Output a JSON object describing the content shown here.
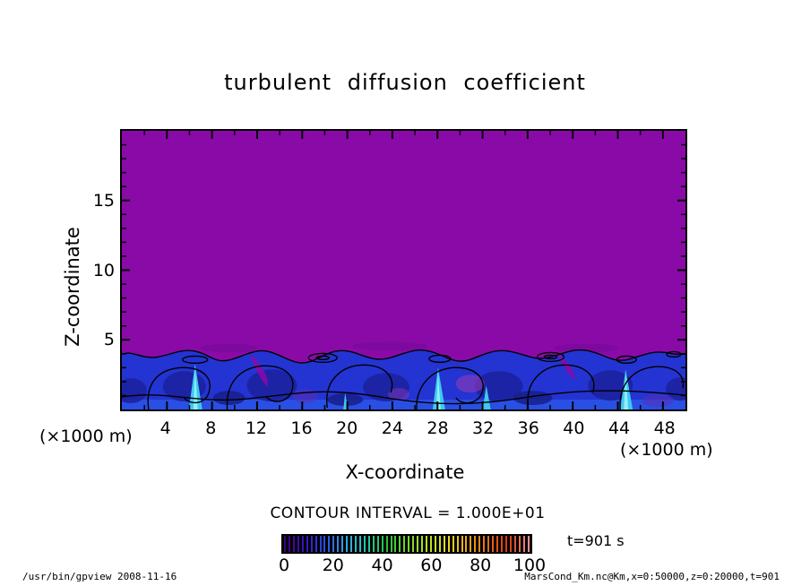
{
  "title": "turbulent diffusion coefficient",
  "axes": {
    "x": {
      "label": "X-coordinate",
      "unit": "(×1000 m)",
      "range": [
        0,
        50
      ],
      "major_ticks": [
        4,
        8,
        12,
        16,
        20,
        24,
        28,
        32,
        36,
        40,
        44,
        48
      ],
      "minor_step": 2
    },
    "y": {
      "label": "Z-coordinate",
      "unit": "(×1000 m)",
      "range": [
        0,
        20
      ],
      "major_ticks": [
        5,
        10,
        15
      ],
      "minor_step": 1
    }
  },
  "annotations": {
    "contour_interval": "CONTOUR INTERVAL = 1.000E+01",
    "time_label": "t=901 s"
  },
  "colorbar": {
    "tick_labels": [
      0,
      20,
      40,
      60,
      80,
      100
    ],
    "range": [
      0,
      100
    ],
    "stripe_count": 56,
    "palette": [
      "#46007d",
      "#3a14c3",
      "#2a4fe0",
      "#2fa9e8",
      "#1fc9ae",
      "#27c43a",
      "#71d723",
      "#b7e01e",
      "#e8da1c",
      "#eda41d",
      "#e56f15",
      "#d93a11",
      "#ef9090"
    ]
  },
  "footer": {
    "left": "/usr/bin/gpview  2008-11-16",
    "right": "MarsCond_Km.nc@Km,x=0:50000,z=0:20000,t=901"
  },
  "colors": {
    "purple-field": "#8a0aa8",
    "band-blue": "#2334d2",
    "band-navy": "#1c22a0",
    "band-deep": "#171d86",
    "strip-blue": "#2c55e8",
    "violet-patch": "#5c2bb4",
    "magenta-patch": "#a33ab4",
    "cyan-plume": "#3fc8ef",
    "cyan-bright": "#8df0fb",
    "contour-line": "#000000"
  },
  "chart_data": {
    "type": "heatmap",
    "title": "turbulent diffusion coefficient",
    "xlabel": "X-coordinate (×1000 m)",
    "ylabel": "Z-coordinate (×1000 m)",
    "xlim": [
      0,
      50
    ],
    "ylim": [
      0,
      20
    ],
    "contour_interval": 10,
    "contour_levels": [
      10,
      20,
      30,
      40,
      50,
      60,
      70,
      80,
      90,
      100
    ],
    "colorbar_range": [
      0,
      100
    ],
    "time_seconds": 901,
    "variable": "Km (turbulent diffusion coefficient)",
    "regions": [
      {
        "z_range": [
          4,
          20
        ],
        "x_range": [
          0,
          50
        ],
        "approx_value": 5,
        "color": "purple",
        "note": "quiescent layer, Km below first contour level (10)"
      },
      {
        "z_range": [
          0,
          4
        ],
        "x_range": [
          0,
          50
        ],
        "approx_value": 20,
        "color": "blue",
        "note": "turbulent convective boundary layer with vortex cells outlined by 10-contour"
      },
      {
        "z_range": [
          0,
          3.5
        ],
        "x_range": [
          6,
          45
        ],
        "approx_value": 45,
        "color": "cyan",
        "note": "narrow convective plume cores near x≈7, 28, 45 (×1000 m)"
      }
    ],
    "legend_position": "bottom colorbar",
    "grid": false
  }
}
